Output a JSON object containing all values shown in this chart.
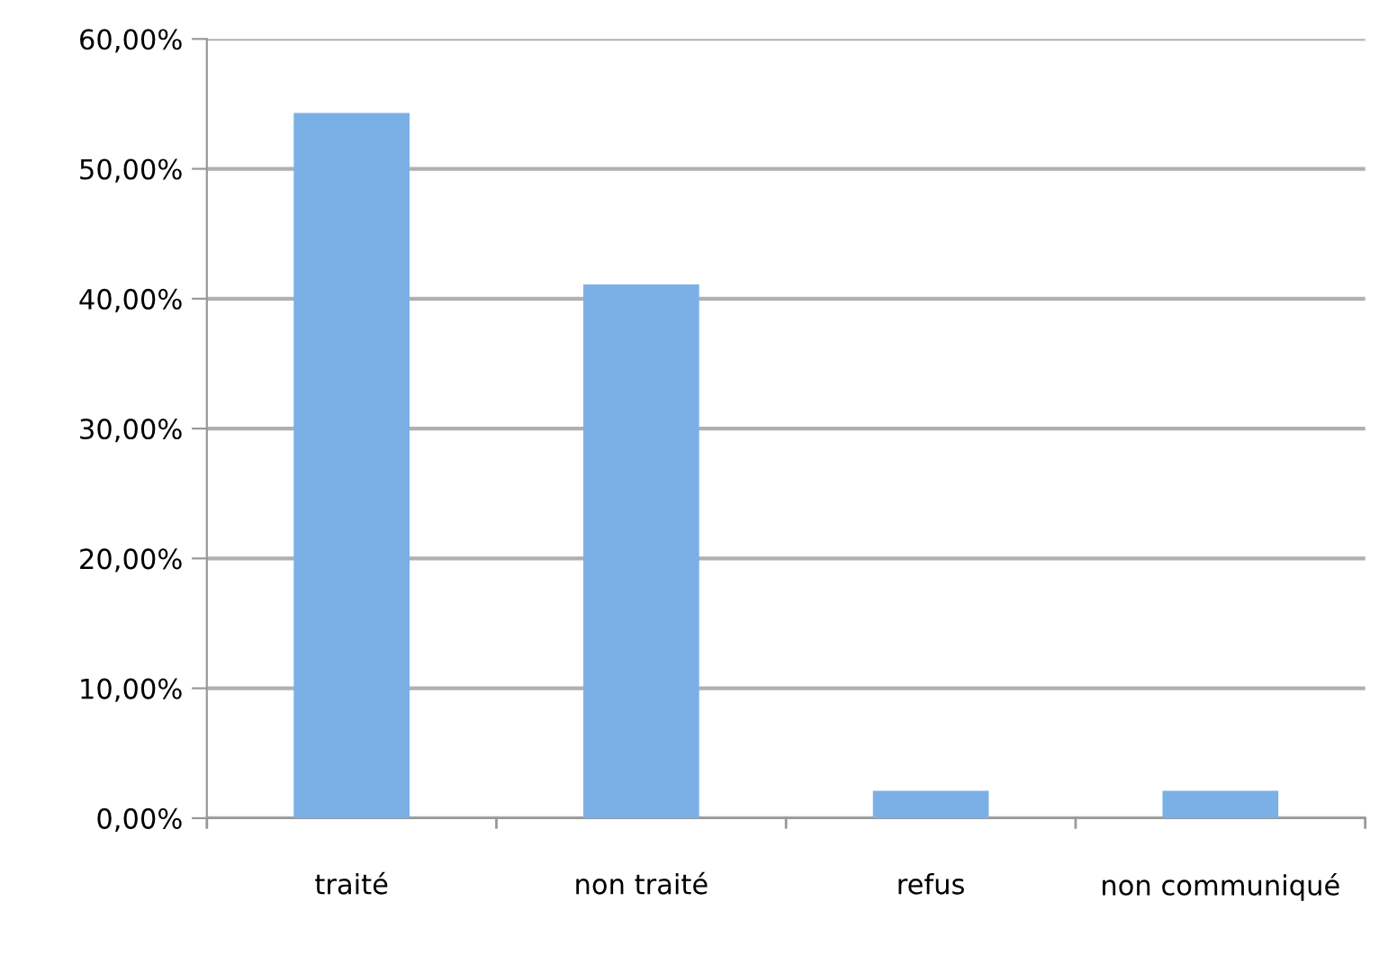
{
  "chart_data": {
    "type": "bar",
    "categories": [
      "traité",
      "non traité",
      "refus",
      "non communiqué"
    ],
    "values": [
      54.3,
      41.1,
      2.1,
      2.1
    ],
    "color": "#7ab0e6",
    "ylim": [
      0,
      60
    ],
    "yticks": [
      {
        "value": 0,
        "label": "0,00%"
      },
      {
        "value": 10,
        "label": "10,00%"
      },
      {
        "value": 20,
        "label": "20,00%"
      },
      {
        "value": 30,
        "label": "30,00%"
      },
      {
        "value": 40,
        "label": "40,00%"
      },
      {
        "value": 50,
        "label": "50,00%"
      },
      {
        "value": 60,
        "label": "60,00%"
      }
    ],
    "grid": "y",
    "legend": false
  }
}
